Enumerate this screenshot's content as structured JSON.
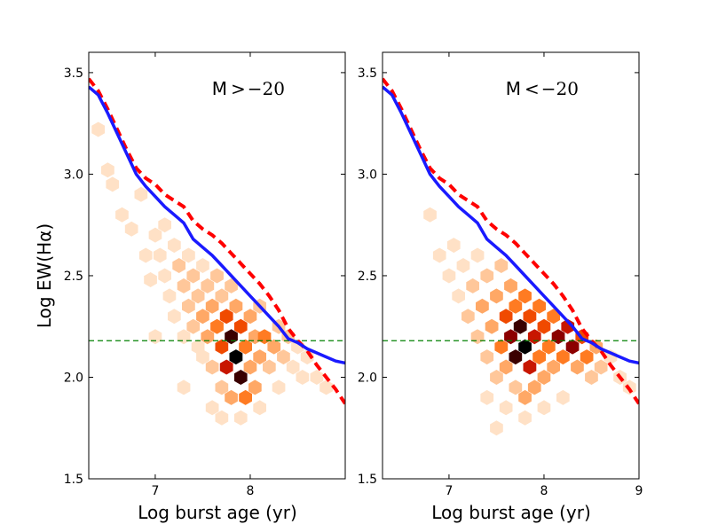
{
  "figure": {
    "ylabel": "Log EW(Hα)",
    "xlabel": "Log burst age (yr)"
  },
  "colors": {
    "blue_line": "#1a1aff",
    "red_dashed": "#ff0000",
    "green_dashed": "#008000",
    "hex_scale": [
      "#fff3ea",
      "#ffe1c6",
      "#ffc79a",
      "#ffa866",
      "#ff7b22",
      "#f04a00",
      "#c81600",
      "#8c0000",
      "#3a0000",
      "#000000"
    ]
  },
  "chart_data": [
    {
      "type": "hexbin",
      "annotation": {
        "prefix": "M",
        "op": ">",
        "value": "−20"
      },
      "xlim": [
        6.3,
        9.0
      ],
      "ylim": [
        1.5,
        3.6
      ],
      "xticks": [
        7,
        8
      ],
      "xtick_labels": [
        "7",
        "8"
      ],
      "yticks": [
        1.5,
        2.0,
        2.5,
        3.0,
        3.5
      ],
      "ytick_labels": [
        "1.5",
        "2.0",
        "2.5",
        "3.0",
        "3.5"
      ],
      "hline_y": 2.18,
      "series_solid": [
        [
          6.3,
          3.43
        ],
        [
          6.4,
          3.39
        ],
        [
          6.5,
          3.3
        ],
        [
          6.6,
          3.2
        ],
        [
          6.7,
          3.1
        ],
        [
          6.8,
          3.0
        ],
        [
          6.9,
          2.94
        ],
        [
          7.0,
          2.89
        ],
        [
          7.1,
          2.84
        ],
        [
          7.2,
          2.8
        ],
        [
          7.3,
          2.76
        ],
        [
          7.4,
          2.68
        ],
        [
          7.5,
          2.64
        ],
        [
          7.6,
          2.6
        ],
        [
          7.7,
          2.55
        ],
        [
          7.8,
          2.5
        ],
        [
          7.9,
          2.45
        ],
        [
          8.0,
          2.4
        ],
        [
          8.1,
          2.35
        ],
        [
          8.2,
          2.3
        ],
        [
          8.3,
          2.25
        ],
        [
          8.4,
          2.19
        ],
        [
          8.5,
          2.17
        ],
        [
          8.6,
          2.14
        ],
        [
          8.7,
          2.12
        ],
        [
          8.8,
          2.1
        ],
        [
          8.9,
          2.08
        ],
        [
          9.0,
          2.07
        ]
      ],
      "series_dashed": [
        [
          6.3,
          3.47
        ],
        [
          6.4,
          3.41
        ],
        [
          6.5,
          3.32
        ],
        [
          6.6,
          3.22
        ],
        [
          6.7,
          3.12
        ],
        [
          6.8,
          3.03
        ],
        [
          6.9,
          2.98
        ],
        [
          7.0,
          2.95
        ],
        [
          7.1,
          2.9
        ],
        [
          7.2,
          2.87
        ],
        [
          7.3,
          2.84
        ],
        [
          7.4,
          2.77
        ],
        [
          7.5,
          2.73
        ],
        [
          7.6,
          2.7
        ],
        [
          7.7,
          2.66
        ],
        [
          7.8,
          2.61
        ],
        [
          7.9,
          2.56
        ],
        [
          8.0,
          2.51
        ],
        [
          8.1,
          2.46
        ],
        [
          8.2,
          2.4
        ],
        [
          8.3,
          2.33
        ],
        [
          8.4,
          2.24
        ],
        [
          8.5,
          2.18
        ],
        [
          8.6,
          2.13
        ],
        [
          8.7,
          2.06
        ],
        [
          8.8,
          2.0
        ],
        [
          8.9,
          1.94
        ],
        [
          9.0,
          1.87
        ]
      ],
      "hex_bins": [
        [
          6.4,
          3.22,
          1
        ],
        [
          6.5,
          3.02,
          1
        ],
        [
          6.55,
          2.95,
          1
        ],
        [
          6.65,
          2.8,
          1
        ],
        [
          6.75,
          2.73,
          1
        ],
        [
          6.85,
          2.9,
          1
        ],
        [
          6.9,
          2.6,
          1
        ],
        [
          6.95,
          2.48,
          1
        ],
        [
          7.0,
          2.7,
          1
        ],
        [
          7.05,
          2.6,
          1
        ],
        [
          7.1,
          2.75,
          1
        ],
        [
          7.1,
          2.5,
          1
        ],
        [
          7.15,
          2.4,
          1
        ],
        [
          7.2,
          2.65,
          1
        ],
        [
          7.2,
          2.3,
          1
        ],
        [
          7.25,
          2.55,
          2
        ],
        [
          7.3,
          2.45,
          2
        ],
        [
          7.3,
          2.2,
          1
        ],
        [
          7.35,
          2.6,
          1
        ],
        [
          7.35,
          2.35,
          2
        ],
        [
          7.4,
          2.5,
          2
        ],
        [
          7.4,
          2.25,
          2
        ],
        [
          7.45,
          2.4,
          2
        ],
        [
          7.45,
          2.15,
          1
        ],
        [
          7.5,
          2.55,
          1
        ],
        [
          7.5,
          2.3,
          3
        ],
        [
          7.5,
          2.1,
          1
        ],
        [
          7.55,
          2.45,
          2
        ],
        [
          7.55,
          2.2,
          3
        ],
        [
          7.6,
          2.35,
          3
        ],
        [
          7.6,
          2.05,
          2
        ],
        [
          7.65,
          2.25,
          4
        ],
        [
          7.65,
          2.5,
          2
        ],
        [
          7.7,
          2.15,
          5
        ],
        [
          7.7,
          2.4,
          2
        ],
        [
          7.7,
          1.95,
          2
        ],
        [
          7.75,
          2.3,
          5
        ],
        [
          7.75,
          2.05,
          6
        ],
        [
          7.8,
          2.2,
          8
        ],
        [
          7.8,
          1.9,
          3
        ],
        [
          7.8,
          2.45,
          2
        ],
        [
          7.85,
          2.1,
          9
        ],
        [
          7.85,
          2.35,
          3
        ],
        [
          7.9,
          2.0,
          8
        ],
        [
          7.9,
          2.25,
          5
        ],
        [
          7.95,
          2.15,
          4
        ],
        [
          7.95,
          1.9,
          4
        ],
        [
          8.0,
          2.3,
          3
        ],
        [
          8.0,
          2.05,
          3
        ],
        [
          8.05,
          2.2,
          3
        ],
        [
          8.05,
          1.95,
          3
        ],
        [
          8.1,
          2.35,
          2
        ],
        [
          8.1,
          2.1,
          3
        ],
        [
          8.15,
          2.2,
          4
        ],
        [
          8.2,
          2.05,
          2
        ],
        [
          8.25,
          2.15,
          3
        ],
        [
          8.3,
          2.25,
          2
        ],
        [
          8.3,
          1.95,
          1
        ],
        [
          8.35,
          2.1,
          2
        ],
        [
          8.4,
          2.2,
          2
        ],
        [
          8.45,
          2.05,
          1
        ],
        [
          8.5,
          2.15,
          1
        ],
        [
          8.55,
          2.0,
          1
        ],
        [
          8.6,
          2.1,
          1
        ],
        [
          8.7,
          2.0,
          1
        ],
        [
          8.8,
          1.95,
          1
        ],
        [
          7.6,
          1.85,
          1
        ],
        [
          7.7,
          1.8,
          1
        ],
        [
          7.9,
          1.8,
          1
        ],
        [
          8.1,
          1.85,
          1
        ],
        [
          7.3,
          1.95,
          1
        ],
        [
          7.0,
          2.2,
          1
        ]
      ]
    },
    {
      "type": "hexbin",
      "annotation": {
        "prefix": "M",
        "op": "<",
        "value": "−20"
      },
      "xlim": [
        6.3,
        9.0
      ],
      "ylim": [
        1.5,
        3.6
      ],
      "xticks": [
        7,
        8,
        9
      ],
      "xtick_labels": [
        "7",
        "8",
        "9"
      ],
      "yticks": [
        1.5,
        2.0,
        2.5,
        3.0,
        3.5
      ],
      "ytick_labels": [
        "1.5",
        "2.0",
        "2.5",
        "3.0",
        "3.5"
      ],
      "hline_y": 2.18,
      "series_solid": [
        [
          6.3,
          3.43
        ],
        [
          6.4,
          3.39
        ],
        [
          6.5,
          3.3
        ],
        [
          6.6,
          3.2
        ],
        [
          6.7,
          3.1
        ],
        [
          6.8,
          3.0
        ],
        [
          6.9,
          2.94
        ],
        [
          7.0,
          2.89
        ],
        [
          7.1,
          2.84
        ],
        [
          7.2,
          2.8
        ],
        [
          7.3,
          2.76
        ],
        [
          7.4,
          2.68
        ],
        [
          7.5,
          2.64
        ],
        [
          7.6,
          2.6
        ],
        [
          7.7,
          2.55
        ],
        [
          7.8,
          2.5
        ],
        [
          7.9,
          2.45
        ],
        [
          8.0,
          2.4
        ],
        [
          8.1,
          2.35
        ],
        [
          8.2,
          2.3
        ],
        [
          8.3,
          2.25
        ],
        [
          8.4,
          2.19
        ],
        [
          8.5,
          2.17
        ],
        [
          8.6,
          2.14
        ],
        [
          8.7,
          2.12
        ],
        [
          8.8,
          2.1
        ],
        [
          8.9,
          2.08
        ],
        [
          9.0,
          2.07
        ]
      ],
      "series_dashed": [
        [
          6.3,
          3.47
        ],
        [
          6.4,
          3.41
        ],
        [
          6.5,
          3.32
        ],
        [
          6.6,
          3.22
        ],
        [
          6.7,
          3.12
        ],
        [
          6.8,
          3.03
        ],
        [
          6.9,
          2.98
        ],
        [
          7.0,
          2.95
        ],
        [
          7.1,
          2.9
        ],
        [
          7.2,
          2.87
        ],
        [
          7.3,
          2.84
        ],
        [
          7.4,
          2.77
        ],
        [
          7.5,
          2.73
        ],
        [
          7.6,
          2.7
        ],
        [
          7.7,
          2.66
        ],
        [
          7.8,
          2.61
        ],
        [
          7.9,
          2.56
        ],
        [
          8.0,
          2.51
        ],
        [
          8.1,
          2.46
        ],
        [
          8.2,
          2.4
        ],
        [
          8.3,
          2.33
        ],
        [
          8.4,
          2.24
        ],
        [
          8.5,
          2.18
        ],
        [
          8.6,
          2.13
        ],
        [
          8.7,
          2.06
        ],
        [
          8.8,
          2.0
        ],
        [
          8.9,
          1.94
        ],
        [
          9.0,
          1.87
        ]
      ],
      "hex_bins": [
        [
          6.8,
          2.8,
          1
        ],
        [
          6.9,
          2.6,
          1
        ],
        [
          7.0,
          2.5,
          1
        ],
        [
          7.05,
          2.65,
          1
        ],
        [
          7.1,
          2.4,
          1
        ],
        [
          7.15,
          2.55,
          1
        ],
        [
          7.2,
          2.3,
          2
        ],
        [
          7.25,
          2.45,
          2
        ],
        [
          7.3,
          2.2,
          2
        ],
        [
          7.3,
          2.6,
          1
        ],
        [
          7.35,
          2.35,
          3
        ],
        [
          7.4,
          2.1,
          2
        ],
        [
          7.4,
          2.5,
          2
        ],
        [
          7.45,
          2.25,
          3
        ],
        [
          7.5,
          2.4,
          3
        ],
        [
          7.5,
          2.0,
          2
        ],
        [
          7.55,
          2.15,
          4
        ],
        [
          7.55,
          2.55,
          2
        ],
        [
          7.6,
          2.3,
          5
        ],
        [
          7.6,
          2.05,
          3
        ],
        [
          7.65,
          2.2,
          7
        ],
        [
          7.65,
          2.45,
          3
        ],
        [
          7.7,
          2.1,
          8
        ],
        [
          7.7,
          2.35,
          4
        ],
        [
          7.7,
          1.95,
          2
        ],
        [
          7.75,
          2.25,
          8
        ],
        [
          7.8,
          2.15,
          9
        ],
        [
          7.8,
          2.4,
          4
        ],
        [
          7.8,
          1.9,
          3
        ],
        [
          7.85,
          2.05,
          6
        ],
        [
          7.85,
          2.3,
          5
        ],
        [
          7.9,
          2.2,
          6
        ],
        [
          7.9,
          1.95,
          3
        ],
        [
          7.95,
          2.35,
          4
        ],
        [
          7.95,
          2.1,
          4
        ],
        [
          8.0,
          2.25,
          5
        ],
        [
          8.0,
          2.0,
          3
        ],
        [
          8.05,
          2.15,
          4
        ],
        [
          8.1,
          2.3,
          4
        ],
        [
          8.1,
          2.05,
          3
        ],
        [
          8.15,
          2.2,
          7
        ],
        [
          8.2,
          2.1,
          4
        ],
        [
          8.25,
          2.25,
          6
        ],
        [
          8.3,
          2.15,
          7
        ],
        [
          8.35,
          2.05,
          3
        ],
        [
          8.4,
          2.2,
          5
        ],
        [
          8.45,
          2.1,
          4
        ],
        [
          8.5,
          2.0,
          2
        ],
        [
          8.55,
          2.15,
          3
        ],
        [
          8.6,
          2.05,
          2
        ],
        [
          8.7,
          2.1,
          1
        ],
        [
          8.8,
          2.0,
          1
        ],
        [
          8.9,
          1.95,
          1
        ],
        [
          7.6,
          1.85,
          1
        ],
        [
          7.8,
          1.8,
          1
        ],
        [
          8.0,
          1.85,
          1
        ],
        [
          8.2,
          1.9,
          1
        ],
        [
          7.4,
          1.9,
          1
        ],
        [
          7.5,
          1.75,
          1
        ]
      ]
    }
  ]
}
